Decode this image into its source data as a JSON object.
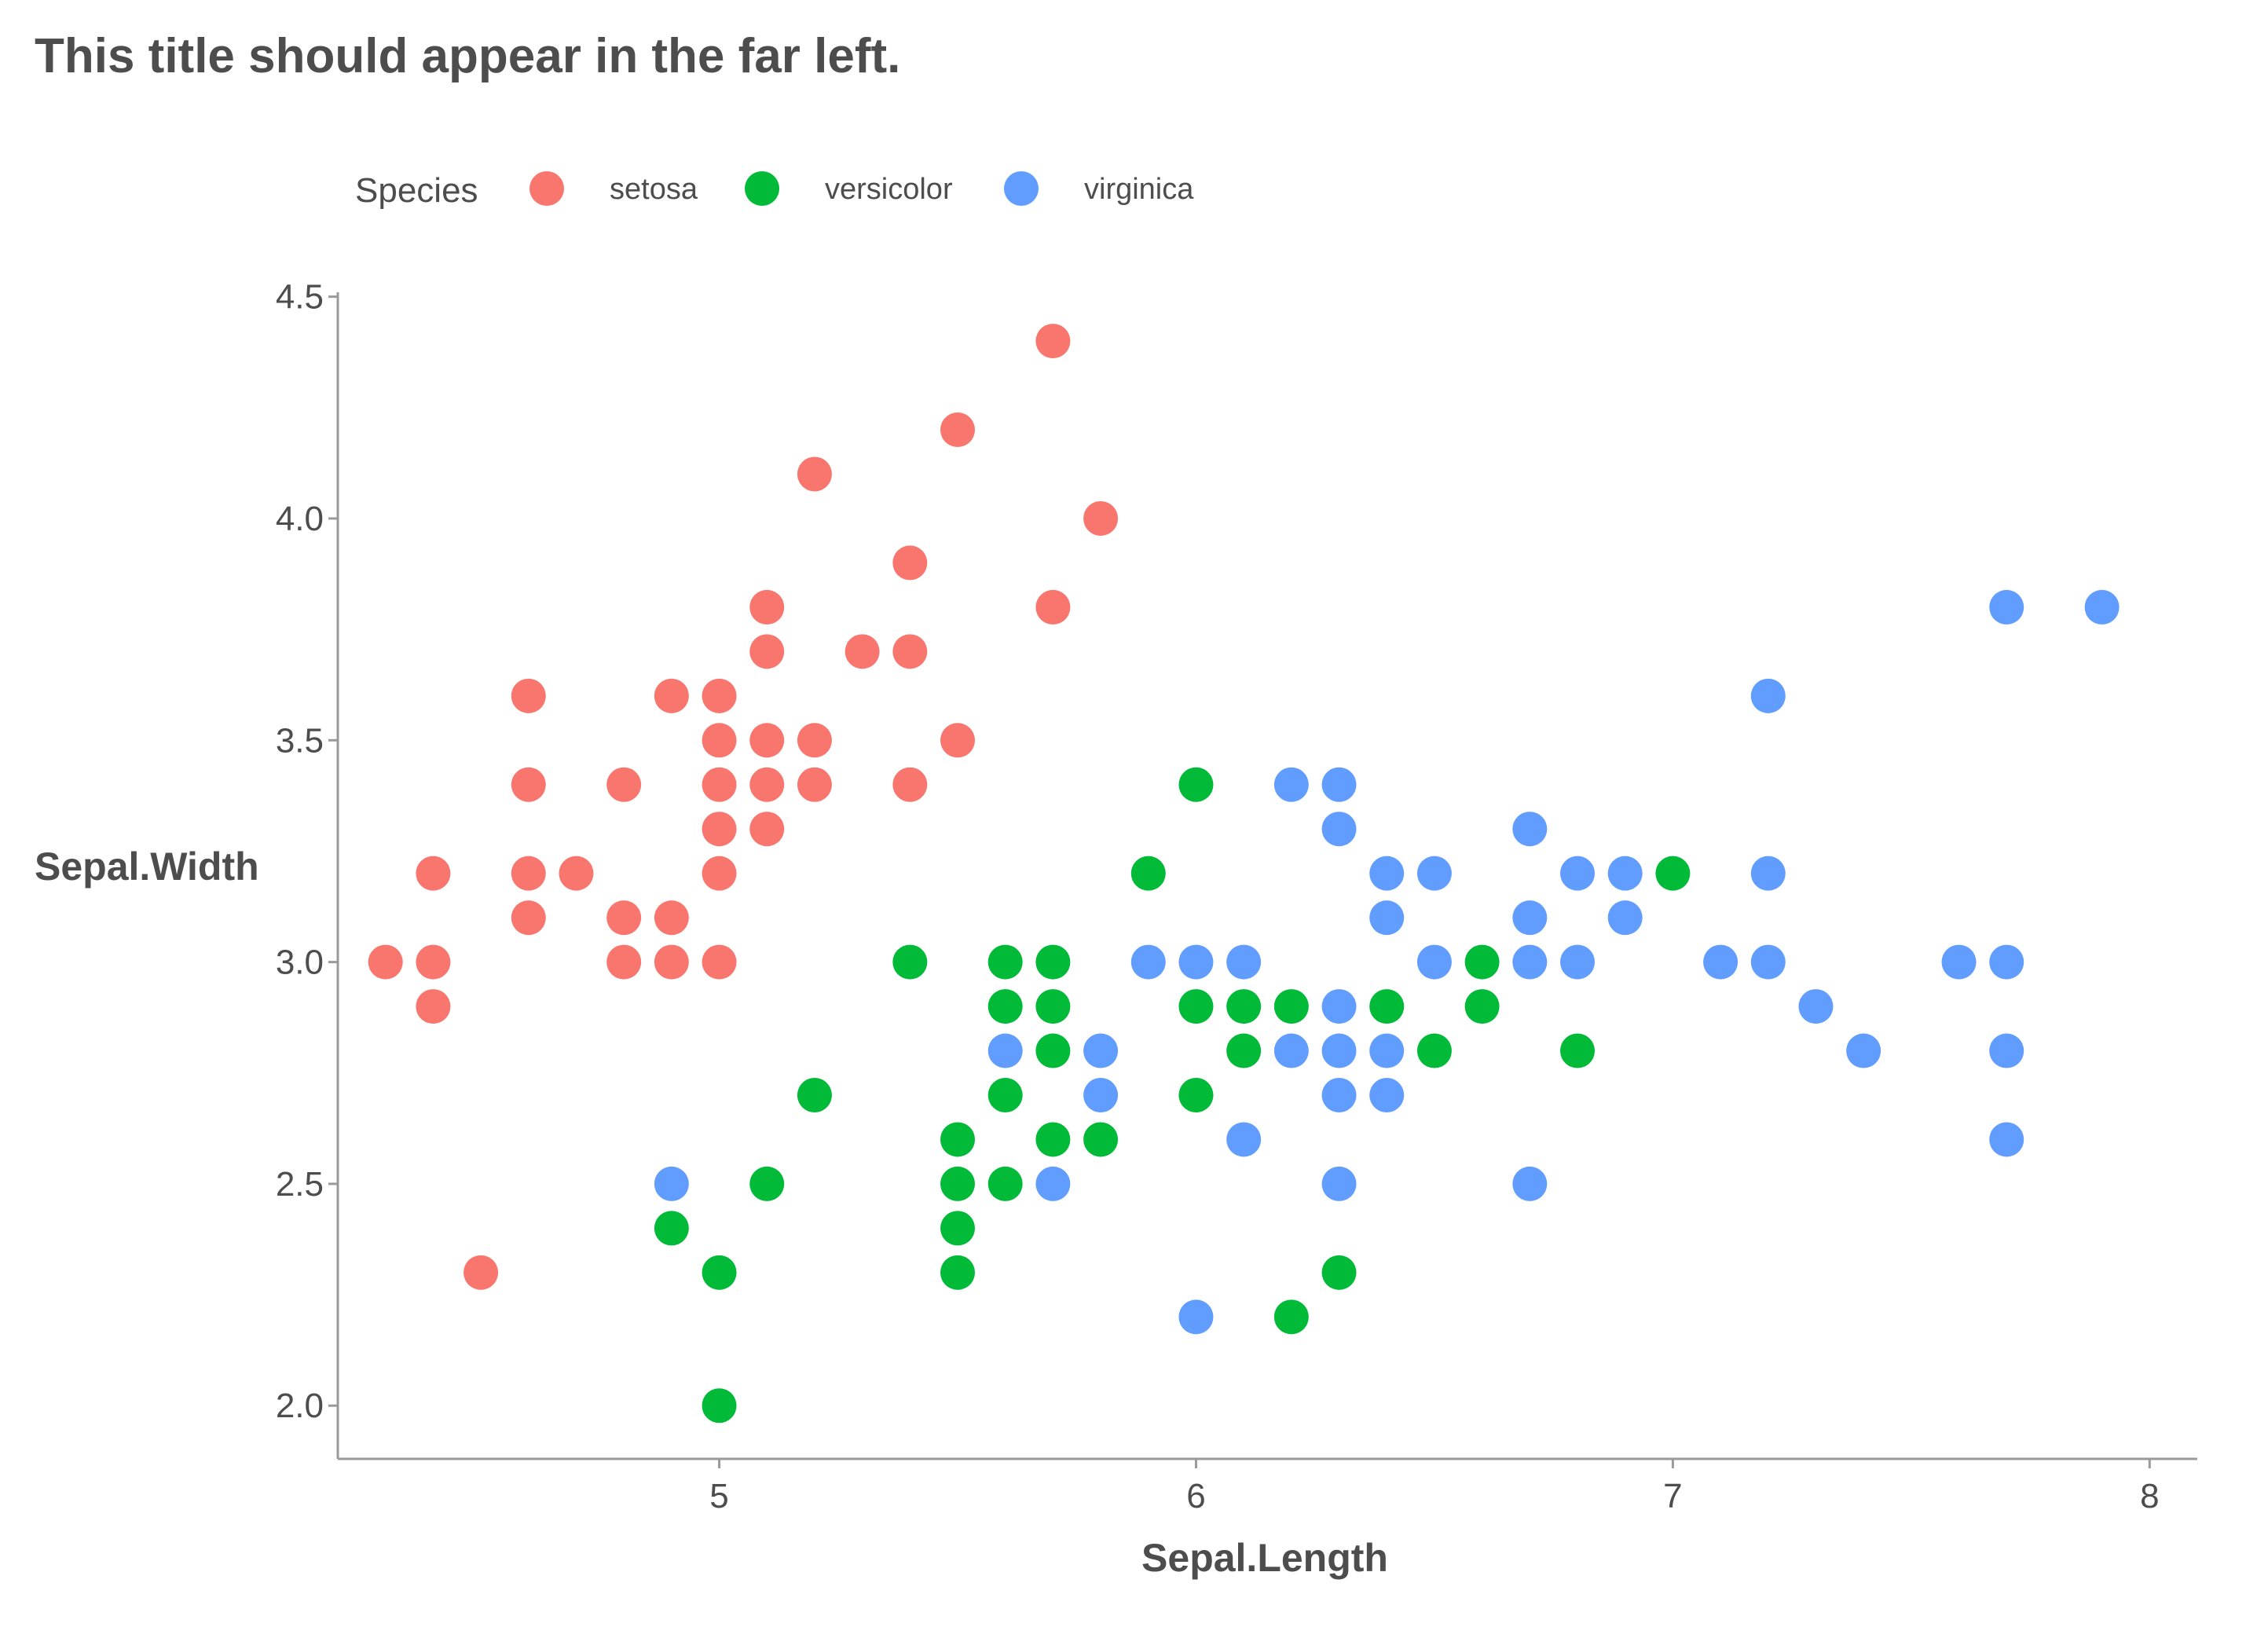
{
  "chart_data": {
    "type": "scatter",
    "title": "This title should appear in the far left.",
    "xlabel": "Sepal.Length",
    "ylabel": "Sepal.Width",
    "xlim": [
      4.2,
      8.1
    ],
    "ylim": [
      1.88,
      4.51
    ],
    "x_ticks": [
      5,
      6,
      7,
      8
    ],
    "x_tick_labels": [
      "5",
      "6",
      "7",
      "8"
    ],
    "y_ticks": [
      2.0,
      2.5,
      3.0,
      3.5,
      4.0,
      4.5
    ],
    "y_tick_labels": [
      "2.0",
      "2.5",
      "3.0",
      "3.5",
      "4.0",
      "4.5"
    ],
    "grid": false,
    "legend": {
      "title": "Species",
      "placement": "top-left"
    },
    "series": [
      {
        "name": "setosa",
        "color": "#F8766D",
        "points": [
          [
            5.7,
            4.4
          ],
          [
            5.5,
            4.2
          ],
          [
            5.2,
            4.1
          ],
          [
            5.8,
            4.0
          ],
          [
            5.4,
            3.9
          ],
          [
            5.1,
            3.8
          ],
          [
            5.7,
            3.8
          ],
          [
            5.1,
            3.7
          ],
          [
            5.3,
            3.7
          ],
          [
            5.4,
            3.7
          ],
          [
            4.6,
            3.6
          ],
          [
            4.9,
            3.6
          ],
          [
            5.0,
            3.6
          ],
          [
            5.0,
            3.5
          ],
          [
            5.1,
            3.5
          ],
          [
            5.2,
            3.5
          ],
          [
            5.5,
            3.5
          ],
          [
            4.6,
            3.4
          ],
          [
            4.8,
            3.4
          ],
          [
            5.0,
            3.4
          ],
          [
            5.1,
            3.4
          ],
          [
            5.2,
            3.4
          ],
          [
            5.4,
            3.4
          ],
          [
            5.0,
            3.3
          ],
          [
            5.1,
            3.3
          ],
          [
            4.4,
            3.2
          ],
          [
            4.6,
            3.2
          ],
          [
            4.7,
            3.2
          ],
          [
            5.0,
            3.2
          ],
          [
            4.6,
            3.1
          ],
          [
            4.8,
            3.1
          ],
          [
            4.9,
            3.1
          ],
          [
            4.3,
            3.0
          ],
          [
            4.4,
            3.0
          ],
          [
            4.8,
            3.0
          ],
          [
            4.9,
            3.0
          ],
          [
            5.0,
            3.0
          ],
          [
            4.4,
            2.9
          ],
          [
            4.5,
            2.3
          ]
        ]
      },
      {
        "name": "versicolor",
        "color": "#00BA38",
        "points": [
          [
            6.0,
            3.4
          ],
          [
            5.9,
            3.2
          ],
          [
            7.0,
            3.2
          ],
          [
            5.4,
            3.0
          ],
          [
            5.6,
            3.0
          ],
          [
            5.7,
            3.0
          ],
          [
            6.6,
            3.0
          ],
          [
            5.6,
            2.9
          ],
          [
            5.7,
            2.9
          ],
          [
            6.0,
            2.9
          ],
          [
            6.1,
            2.9
          ],
          [
            6.2,
            2.9
          ],
          [
            6.4,
            2.9
          ],
          [
            6.6,
            2.9
          ],
          [
            5.7,
            2.8
          ],
          [
            6.1,
            2.8
          ],
          [
            6.5,
            2.8
          ],
          [
            6.8,
            2.8
          ],
          [
            5.2,
            2.7
          ],
          [
            5.6,
            2.7
          ],
          [
            6.0,
            2.7
          ],
          [
            5.5,
            2.6
          ],
          [
            5.7,
            2.6
          ],
          [
            5.8,
            2.6
          ],
          [
            5.1,
            2.5
          ],
          [
            5.5,
            2.5
          ],
          [
            5.6,
            2.5
          ],
          [
            4.9,
            2.4
          ],
          [
            5.5,
            2.4
          ],
          [
            5.0,
            2.3
          ],
          [
            5.5,
            2.3
          ],
          [
            6.3,
            2.3
          ],
          [
            6.2,
            2.2
          ],
          [
            5.0,
            2.0
          ]
        ]
      },
      {
        "name": "virginica",
        "color": "#619CFF",
        "points": [
          [
            7.7,
            3.8
          ],
          [
            7.9,
            3.8
          ],
          [
            7.2,
            3.6
          ],
          [
            6.2,
            3.4
          ],
          [
            6.3,
            3.4
          ],
          [
            6.3,
            3.3
          ],
          [
            6.7,
            3.3
          ],
          [
            6.4,
            3.2
          ],
          [
            6.5,
            3.2
          ],
          [
            6.8,
            3.2
          ],
          [
            6.9,
            3.2
          ],
          [
            7.2,
            3.2
          ],
          [
            6.4,
            3.1
          ],
          [
            6.7,
            3.1
          ],
          [
            6.9,
            3.1
          ],
          [
            5.9,
            3.0
          ],
          [
            6.0,
            3.0
          ],
          [
            6.1,
            3.0
          ],
          [
            6.5,
            3.0
          ],
          [
            6.7,
            3.0
          ],
          [
            6.8,
            3.0
          ],
          [
            7.1,
            3.0
          ],
          [
            7.2,
            3.0
          ],
          [
            7.6,
            3.0
          ],
          [
            7.7,
            3.0
          ],
          [
            6.3,
            2.9
          ],
          [
            7.3,
            2.9
          ],
          [
            5.6,
            2.8
          ],
          [
            5.8,
            2.8
          ],
          [
            6.2,
            2.8
          ],
          [
            6.3,
            2.8
          ],
          [
            6.4,
            2.8
          ],
          [
            7.4,
            2.8
          ],
          [
            7.7,
            2.8
          ],
          [
            5.8,
            2.7
          ],
          [
            6.3,
            2.7
          ],
          [
            6.4,
            2.7
          ],
          [
            6.1,
            2.6
          ],
          [
            7.7,
            2.6
          ],
          [
            4.9,
            2.5
          ],
          [
            5.7,
            2.5
          ],
          [
            6.3,
            2.5
          ],
          [
            6.7,
            2.5
          ],
          [
            6.0,
            2.2
          ]
        ]
      }
    ]
  }
}
